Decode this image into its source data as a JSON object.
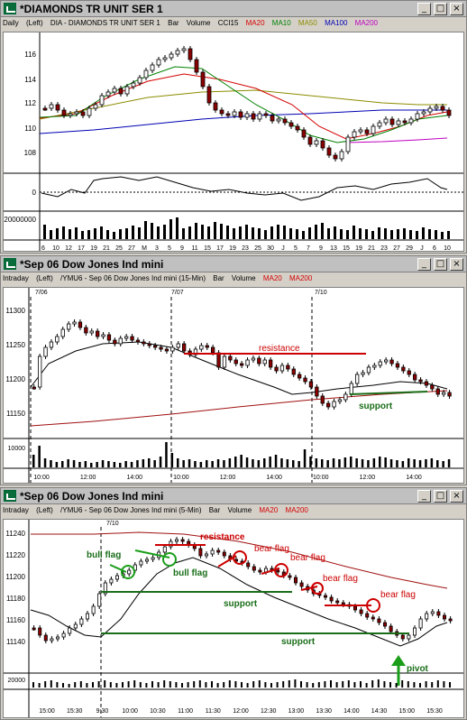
{
  "colors": {
    "ma20": "#d40000",
    "ma10": "#008000",
    "ma50": "#8c8c00",
    "ma100": "#0000b4",
    "ma200": "#c000c0",
    "annotation_red": "#cc0000",
    "annotation_green": "#1a6e1a"
  },
  "window_buttons": [
    "_",
    "□",
    "×"
  ],
  "win1": {
    "title": "*DIAMONDS TR UNIT SER 1",
    "info": {
      "interval": "Daily",
      "axis": "(Left)",
      "symbol": "DIA - DIAMONDS TR UNIT SER 1",
      "type": "Bar",
      "volume": "Volume",
      "cci": "CCI15",
      "ma20": "MA20",
      "ma10": "MA10",
      "ma50": "MA50",
      "ma100": "MA100",
      "ma200": "MA200"
    },
    "price_ticks": [
      "116",
      "114",
      "112",
      "110",
      "108"
    ],
    "cci_tick": "0",
    "vol_tick": "20000000",
    "x_labels": [
      "6",
      "10",
      "12",
      "17",
      "19",
      "21",
      "25",
      "27",
      "M",
      "3",
      "5",
      "9",
      "11",
      "15",
      "17",
      "19",
      "23",
      "25",
      "30",
      "J",
      "5",
      "7",
      "9",
      "13",
      "15",
      "19",
      "21",
      "23",
      "27",
      "29",
      "J",
      "6",
      "10"
    ]
  },
  "win2": {
    "title": "*Sep 06  Dow Jones Ind mini",
    "info": {
      "interval": "Intraday",
      "axis": "(Left)",
      "symbol": "/YMU6 - Sep 06  Dow Jones Ind mini (15-Min)",
      "type": "Bar",
      "volume": "Volume",
      "ma20": "MA20",
      "ma200": "MA200"
    },
    "date_markers": [
      "7/06",
      "7/07",
      "7/10"
    ],
    "price_ticks": [
      "11300",
      "11250",
      "11200",
      "11150"
    ],
    "vol_tick": "10000",
    "x_labels": [
      "10:00",
      "12:00",
      "14:00",
      "10:00",
      "12:00",
      "14:00",
      "10:00",
      "12:00",
      "14:00"
    ],
    "annotations": {
      "resistance": "resistance",
      "support": "support"
    }
  },
  "win3": {
    "title": "*Sep 06  Dow Jones Ind mini",
    "info": {
      "interval": "Intraday",
      "axis": "(Left)",
      "symbol": "/YMU6 - Sep 06  Dow Jones Ind mini (5-Min)",
      "type": "Bar",
      "volume": "Volume",
      "ma20": "MA20",
      "ma200": "MA200"
    },
    "date_marker": "7/10",
    "price_ticks": [
      "11240",
      "11220",
      "11200",
      "11180",
      "11160",
      "11140"
    ],
    "vol_tick": "20000",
    "x_labels": [
      "15:00",
      "15:30",
      "9:30",
      "10:00",
      "10:30",
      "11:00",
      "11:30",
      "12:00",
      "12:30",
      "13:00",
      "13:30",
      "14:00",
      "14:30",
      "15:00",
      "15:30"
    ],
    "annotations": {
      "bull_flag_1": "bull flag",
      "bull_flag_2": "bull flag",
      "resistance": "resistance",
      "bear_flag_1": "bear flag",
      "bear_flag_2": "bear flag",
      "bear_flag_3": "bear flag",
      "bear_flag_4": "bear flag",
      "support_1": "support",
      "support_2": "support",
      "pivot": "pivot"
    }
  }
}
